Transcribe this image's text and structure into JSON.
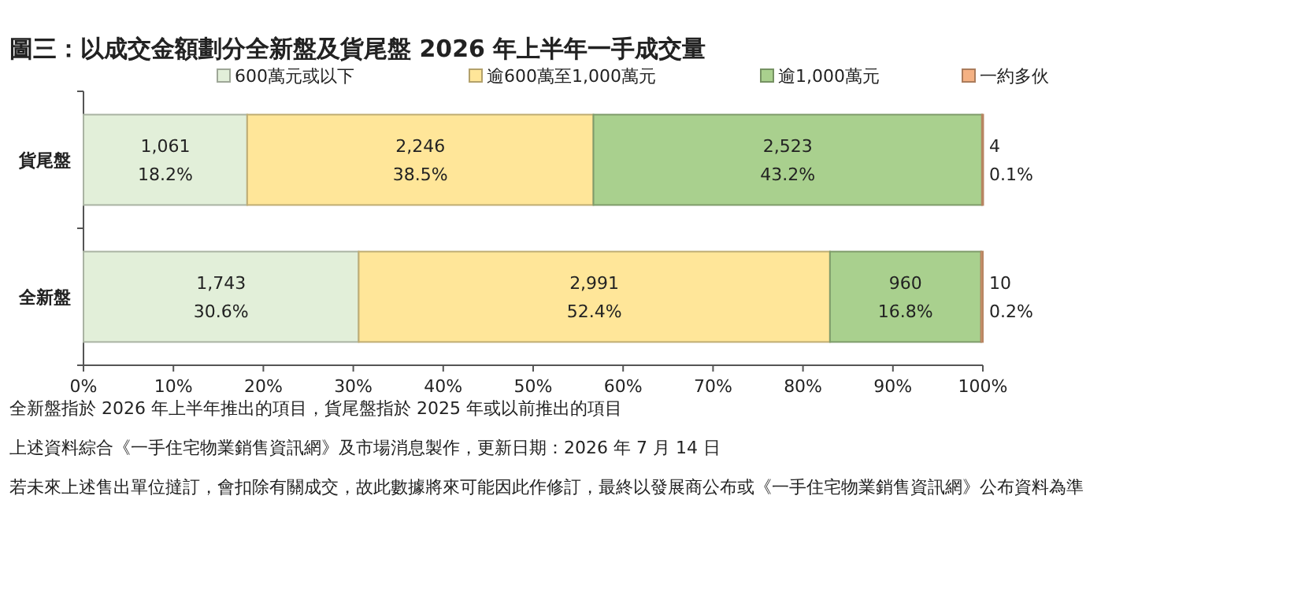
{
  "chart_data": {
    "type": "bar",
    "orientation": "horizontal",
    "stacked": true,
    "title": "圖三：以成交金額劃分全新盤及貨尾盤 2026 年上半年一手成交量",
    "categories": [
      "貨尾盤",
      "全新盤"
    ],
    "series": [
      {
        "name": "600萬元或以下",
        "color": "#e2efd9",
        "values": [
          18.2,
          30.6
        ],
        "value_labels": [
          "1,061\n18.2%",
          "1,743\n30.6%"
        ]
      },
      {
        "name": "逾600萬至1,000萬元",
        "color": "#ffe699",
        "values": [
          38.5,
          52.4
        ],
        "value_labels": [
          "2,246\n38.5%",
          "2,991\n52.4%"
        ]
      },
      {
        "name": "逾1,000萬元",
        "color": "#a9d08e",
        "values": [
          43.2,
          16.8
        ],
        "value_labels": [
          "2,523\n43.2%",
          "960\n16.8%"
        ]
      },
      {
        "name": "一約多伙",
        "color": "#f4b183",
        "values": [
          0.1,
          0.2
        ],
        "value_labels": [
          "4\n0.1%",
          "10\n0.2%"
        ]
      }
    ],
    "xlim": [
      0,
      100
    ],
    "xticks": [
      {
        "value": 0,
        "label": "0%"
      },
      {
        "value": 10,
        "label": "10%"
      },
      {
        "value": 20,
        "label": "20%"
      },
      {
        "value": 30,
        "label": "30%"
      },
      {
        "value": 40,
        "label": "40%"
      },
      {
        "value": 50,
        "label": "50%"
      },
      {
        "value": 60,
        "label": "60%"
      },
      {
        "value": 70,
        "label": "70%"
      },
      {
        "value": 80,
        "label": "80%"
      },
      {
        "value": 90,
        "label": "90%"
      },
      {
        "value": 100,
        "label": "100%"
      }
    ],
    "legend": "top",
    "grid": false,
    "annotations": [
      "全新盤指於 2026 年上半年推出的項目，貨尾盤指於 2025 年或以前推出的項目",
      "上述資料綜合《一手住宅物業銷售資訊網》及市場消息製作，更新日期：2026 年 7 月 14 日",
      "若未來上述售出單位撻訂，會扣除有關成交，故此數據將來可能因此作修訂，最終以發展商公布或《一手住宅物業銷售資訊網》公布資料為準"
    ]
  }
}
